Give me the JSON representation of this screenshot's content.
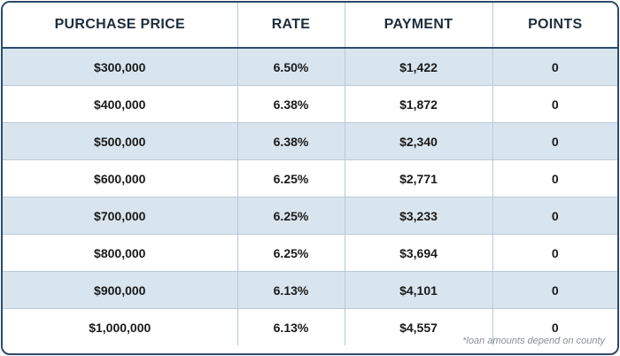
{
  "table": {
    "headers": [
      "PURCHASE PRICE",
      "RATE",
      "PAYMENT",
      "POINTS"
    ],
    "rows": [
      [
        "$300,000",
        "6.50%",
        "$1,422",
        "0"
      ],
      [
        "$400,000",
        "6.38%",
        "$1,872",
        "0"
      ],
      [
        "$500,000",
        "6.38%",
        "$2,340",
        "0"
      ],
      [
        "$600,000",
        "6.25%",
        "$2,771",
        "0"
      ],
      [
        "$700,000",
        "6.25%",
        "$3,233",
        "0"
      ],
      [
        "$800,000",
        "6.25%",
        "$3,694",
        "0"
      ],
      [
        "$900,000",
        "6.13%",
        "$4,101",
        "0"
      ],
      [
        "$1,000,000",
        "6.13%",
        "$4,557",
        "0"
      ]
    ]
  },
  "footnote": "*loan amounts depend on county",
  "colors": {
    "border": "#2c4a6b",
    "alt_row": "#d9e5ee",
    "grid": "#b9c9d6"
  }
}
